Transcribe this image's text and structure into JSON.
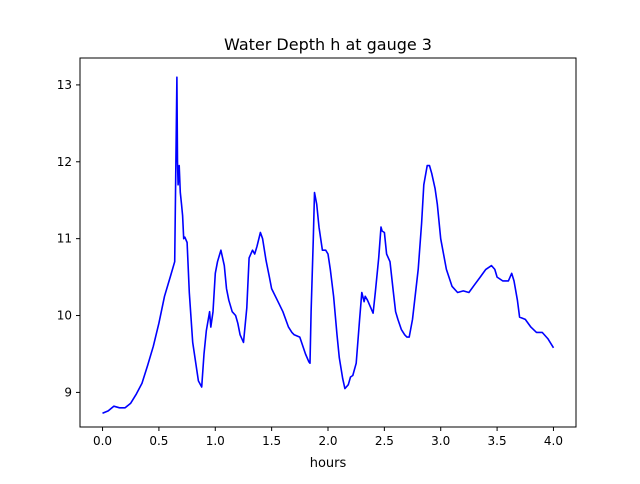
{
  "chart_data": {
    "type": "line",
    "title": "Water Depth h at gauge 3",
    "xlabel": "hours",
    "ylabel": "",
    "xlim": [
      -0.2,
      4.2
    ],
    "ylim": [
      8.55,
      13.35
    ],
    "xticks": [
      0.0,
      0.5,
      1.0,
      1.5,
      2.0,
      2.5,
      3.0,
      3.5,
      4.0
    ],
    "xtick_labels": [
      "0.0",
      "0.5",
      "1.0",
      "1.5",
      "2.0",
      "2.5",
      "3.0",
      "3.5",
      "4.0"
    ],
    "yticks": [
      9,
      10,
      11,
      12,
      13
    ],
    "ytick_labels": [
      "9",
      "10",
      "11",
      "12",
      "13"
    ],
    "grid": false,
    "series": [
      {
        "color": "#0000ff",
        "x": [
          0.0,
          0.05,
          0.1,
          0.15,
          0.2,
          0.25,
          0.3,
          0.35,
          0.4,
          0.45,
          0.5,
          0.55,
          0.6,
          0.64,
          0.66,
          0.665,
          0.67,
          0.68,
          0.69,
          0.7,
          0.71,
          0.72,
          0.73,
          0.75,
          0.77,
          0.8,
          0.85,
          0.88,
          0.9,
          0.92,
          0.95,
          0.96,
          0.98,
          1.0,
          1.02,
          1.05,
          1.08,
          1.1,
          1.12,
          1.15,
          1.18,
          1.2,
          1.22,
          1.25,
          1.28,
          1.3,
          1.33,
          1.35,
          1.37,
          1.4,
          1.42,
          1.45,
          1.48,
          1.5,
          1.55,
          1.6,
          1.65,
          1.68,
          1.7,
          1.75,
          1.8,
          1.83,
          1.84,
          1.85,
          1.87,
          1.88,
          1.9,
          1.92,
          1.95,
          1.98,
          2.0,
          2.02,
          2.05,
          2.08,
          2.1,
          2.13,
          2.15,
          2.18,
          2.2,
          2.22,
          2.25,
          2.28,
          2.3,
          2.32,
          2.33,
          2.35,
          2.38,
          2.4,
          2.42,
          2.45,
          2.47,
          2.48,
          2.5,
          2.52,
          2.55,
          2.58,
          2.6,
          2.62,
          2.65,
          2.68,
          2.7,
          2.72,
          2.75,
          2.8,
          2.83,
          2.85,
          2.88,
          2.9,
          2.92,
          2.95,
          2.97,
          3.0,
          3.05,
          3.1,
          3.15,
          3.2,
          3.25,
          3.3,
          3.35,
          3.4,
          3.45,
          3.48,
          3.5,
          3.55,
          3.6,
          3.63,
          3.65,
          3.68,
          3.7,
          3.75,
          3.8,
          3.85,
          3.9,
          3.95,
          4.0
        ],
        "y": [
          8.73,
          8.76,
          8.82,
          8.8,
          8.8,
          8.86,
          8.98,
          9.12,
          9.35,
          9.6,
          9.9,
          10.25,
          10.5,
          10.7,
          13.1,
          12.0,
          11.7,
          11.95,
          11.6,
          11.45,
          11.3,
          11.0,
          11.02,
          10.95,
          10.3,
          9.65,
          9.15,
          9.07,
          9.5,
          9.8,
          10.05,
          9.85,
          10.05,
          10.55,
          10.7,
          10.85,
          10.65,
          10.35,
          10.2,
          10.05,
          10.0,
          9.9,
          9.75,
          9.65,
          10.1,
          10.75,
          10.85,
          10.8,
          10.9,
          11.08,
          11.0,
          10.72,
          10.5,
          10.35,
          10.2,
          10.05,
          9.85,
          9.78,
          9.75,
          9.72,
          9.5,
          9.4,
          9.38,
          10.05,
          11.0,
          11.6,
          11.45,
          11.15,
          10.85,
          10.85,
          10.8,
          10.6,
          10.25,
          9.75,
          9.45,
          9.18,
          9.05,
          9.1,
          9.2,
          9.22,
          9.38,
          9.95,
          10.3,
          10.18,
          10.25,
          10.2,
          10.1,
          10.03,
          10.3,
          10.75,
          11.15,
          11.1,
          11.08,
          10.8,
          10.7,
          10.3,
          10.05,
          9.95,
          9.82,
          9.75,
          9.72,
          9.72,
          9.95,
          10.6,
          11.2,
          11.7,
          11.95,
          11.95,
          11.85,
          11.65,
          11.45,
          11.0,
          10.6,
          10.38,
          10.3,
          10.32,
          10.3,
          10.4,
          10.5,
          10.6,
          10.65,
          10.6,
          10.5,
          10.45,
          10.45,
          10.55,
          10.45,
          10.2,
          9.98,
          9.95,
          9.85,
          9.78,
          9.78,
          9.7,
          9.58
        ]
      }
    ]
  }
}
